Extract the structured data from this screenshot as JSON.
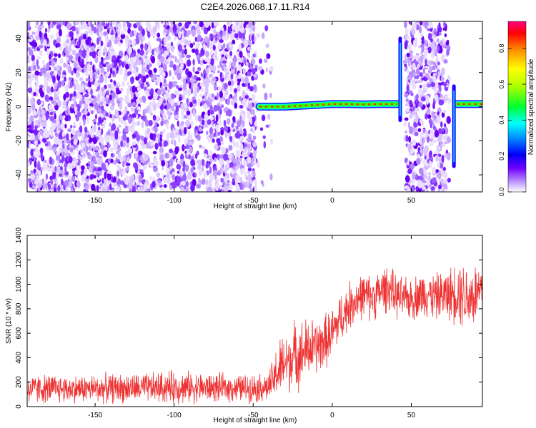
{
  "figure": {
    "title": "C2E4.2026.068.17.11.R14"
  },
  "chart_data": [
    {
      "type": "heatmap",
      "xlabel": "Height of straight line (km)",
      "ylabel": "Frequency (Hz)",
      "xlim": [
        -193,
        95
      ],
      "ylim": [
        -50,
        50
      ],
      "xticks": [
        -150,
        -100,
        -50,
        0,
        50
      ],
      "yticks": [
        -40,
        -20,
        0,
        20,
        40
      ],
      "grid": false,
      "colorbar": {
        "label": "Normalized spectral amplitude",
        "range": [
          0,
          0.95
        ],
        "ticks": [
          0.0,
          0.2,
          0.4,
          0.6,
          0.8
        ]
      },
      "regions": [
        {
          "x": [
            -193,
            -48
          ],
          "content": "broadband noise, amplitude ~0.1-0.2"
        },
        {
          "x": [
            -48,
            -38
          ],
          "content": "sparse noise fading out"
        },
        {
          "x": [
            -47,
            42
          ],
          "content": "narrow tone near 0-1 Hz, amplitude ~0.8-0.95"
        },
        {
          "x": [
            42,
            44
          ],
          "content": "vertical spike -8 to 40 Hz"
        },
        {
          "x": [
            46,
            74
          ],
          "content": "broadband noise"
        },
        {
          "x": [
            76,
            78
          ],
          "content": "vertical spike -35 to 12 Hz"
        },
        {
          "x": [
            79,
            95
          ],
          "content": "narrow tone near 1 Hz"
        }
      ],
      "tone_line": [
        {
          "x": -46,
          "y": 0.0
        },
        {
          "x": -30,
          "y": 0.0
        },
        {
          "x": -20,
          "y": 0.5
        },
        {
          "x": -10,
          "y": 1.0
        },
        {
          "x": 0,
          "y": 1.5
        },
        {
          "x": 10,
          "y": 1.5
        },
        {
          "x": 20,
          "y": 1.3
        },
        {
          "x": 30,
          "y": 1.5
        },
        {
          "x": 41,
          "y": 1.5
        },
        {
          "x": 79,
          "y": 1.5
        },
        {
          "x": 95,
          "y": 1.5
        }
      ]
    },
    {
      "type": "line",
      "xlabel": "Height of straight line (km)",
      "ylabel": "SNR (10 * v/v)",
      "xlim": [
        -193,
        95
      ],
      "ylim": [
        0,
        1400
      ],
      "xticks": [
        -150,
        -100,
        -50,
        0,
        50
      ],
      "yticks": [
        0,
        200,
        400,
        600,
        800,
        1000,
        1200,
        1400
      ],
      "grid": false,
      "color": "#ee3333",
      "series": [
        {
          "x": [
            -193,
            -180,
            -160,
            -140,
            -120,
            -100,
            -80,
            -60,
            -45,
            -40,
            -36,
            -32,
            -28,
            -24,
            -20,
            -16,
            -12,
            -8,
            -4,
            0,
            5,
            10,
            15,
            20,
            25,
            30,
            35,
            40,
            45,
            50,
            55,
            60,
            65,
            70,
            75,
            80,
            85,
            90,
            95
          ],
          "mean": [
            140,
            145,
            145,
            150,
            150,
            160,
            155,
            150,
            155,
            160,
            250,
            330,
            370,
            420,
            430,
            470,
            480,
            500,
            540,
            600,
            720,
            810,
            880,
            910,
            890,
            930,
            980,
            900,
            880,
            880,
            910,
            930,
            900,
            910,
            920,
            950,
            900,
            910,
            930
          ],
          "spread": [
            140,
            140,
            130,
            140,
            140,
            160,
            140,
            130,
            140,
            140,
            250,
            300,
            300,
            320,
            320,
            300,
            280,
            270,
            260,
            250,
            240,
            230,
            220,
            220,
            220,
            220,
            230,
            210,
            200,
            200,
            220,
            230,
            220,
            230,
            260,
            330,
            320,
            330,
            330
          ]
        }
      ]
    }
  ]
}
